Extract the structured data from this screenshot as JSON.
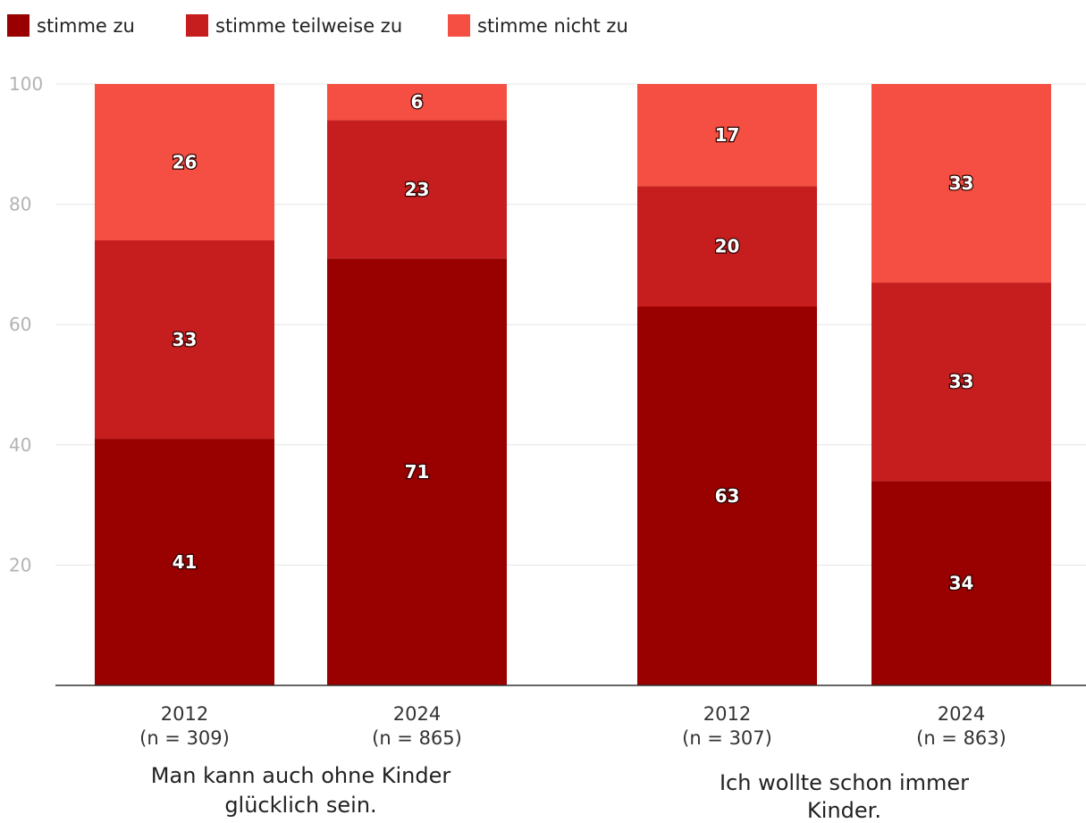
{
  "chart_data": {
    "type": "bar",
    "stacked": true,
    "series": [
      {
        "name": "stimme zu",
        "color": "#990000",
        "values": [
          41,
          71,
          63,
          34
        ]
      },
      {
        "name": "stimme teilweise zu",
        "color": "#c61e1e",
        "values": [
          33,
          23,
          20,
          33
        ]
      },
      {
        "name": "stimme nicht zu",
        "color": "#f44f42",
        "values": [
          26,
          6,
          17,
          33
        ]
      }
    ],
    "categories": [
      {
        "year": "2012",
        "n": "(n = 309)"
      },
      {
        "year": "2024",
        "n": "(n = 865)"
      },
      {
        "year": "2012",
        "n": "(n = 307)"
      },
      {
        "year": "2024",
        "n": "(n = 863)"
      }
    ],
    "groups": [
      {
        "lines": [
          "Man kann auch ohne Kinder",
          "glücklich sein."
        ],
        "categories": [
          0,
          1
        ]
      },
      {
        "lines": [
          "Ich wollte schon immer",
          "Kinder."
        ],
        "categories": [
          2,
          3
        ]
      }
    ],
    "ylim": [
      0,
      100
    ],
    "yticks": [
      "20",
      "40",
      "60",
      "80",
      "100"
    ],
    "grid": true,
    "legend_position": "top-left"
  }
}
